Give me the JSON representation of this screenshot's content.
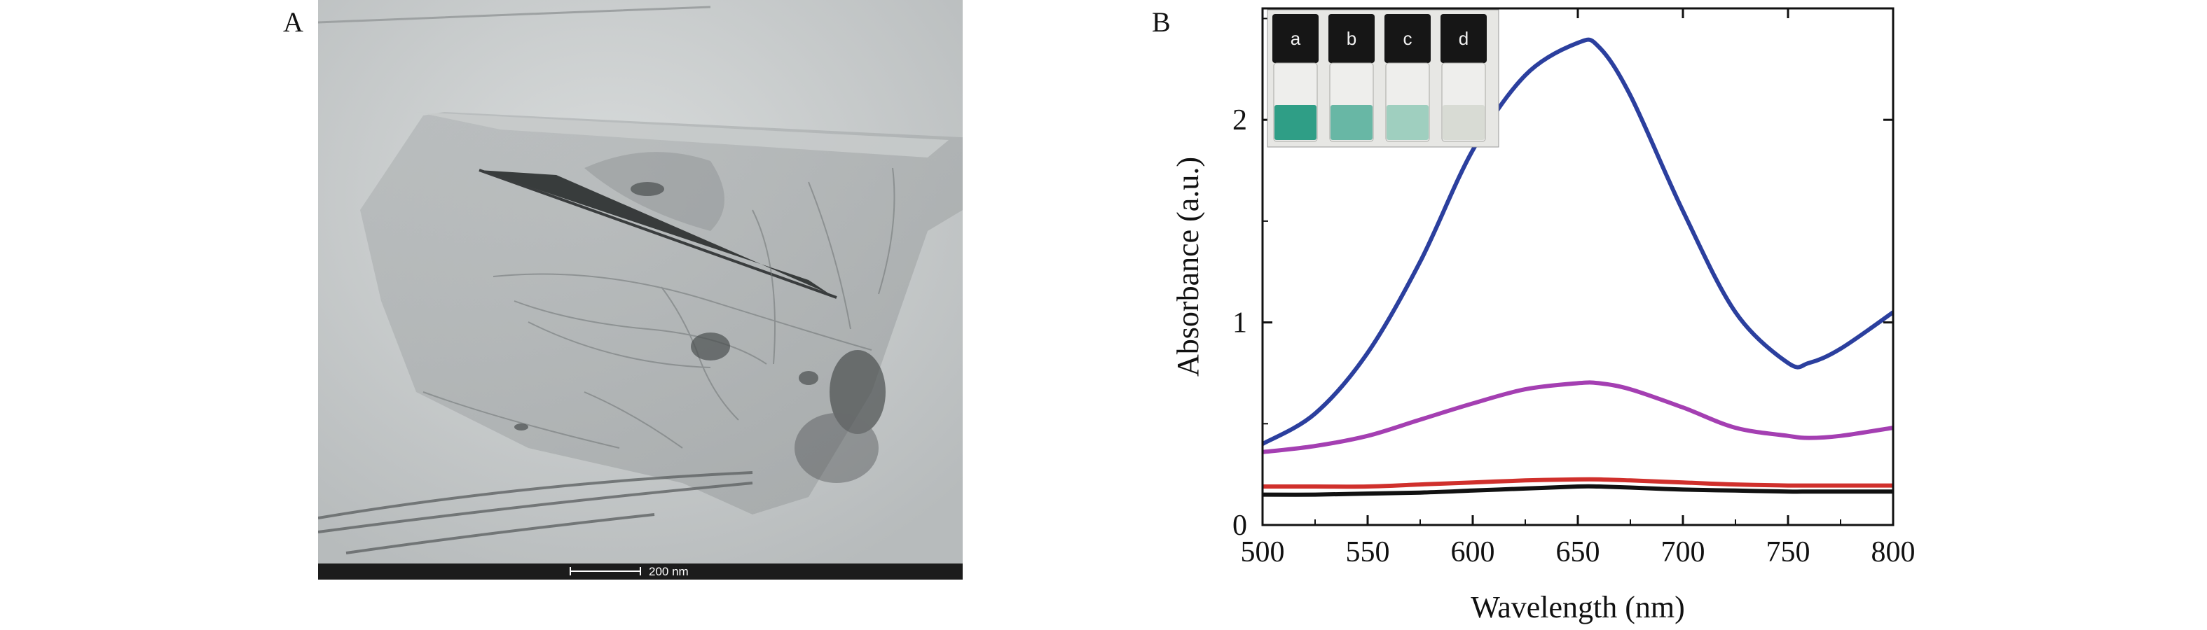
{
  "figure": {
    "panel_a": {
      "label": "A",
      "scale_bar_text": "200 nm"
    },
    "panel_b": {
      "label": "B",
      "inset_vial_labels": [
        "a",
        "b",
        "c",
        "d"
      ],
      "inset_liquid_colors": [
        "#2f9e86",
        "#68b7a5",
        "#9fcfbf",
        "#d8dbd4"
      ]
    }
  },
  "chart_data": {
    "type": "line",
    "xlabel": "Wavelength (nm)",
    "ylabel": "Absorbance (a.u.)",
    "xlim": [
      500,
      800
    ],
    "ylim": [
      0,
      2.55
    ],
    "xticks": [
      500,
      550,
      600,
      650,
      700,
      750,
      800
    ],
    "yticks": [
      0,
      1,
      2
    ],
    "grid": false,
    "legend": "none",
    "x": [
      500,
      525,
      550,
      575,
      600,
      625,
      650,
      660,
      675,
      700,
      725,
      750,
      760,
      775,
      800
    ],
    "series": [
      {
        "color": "#2b3f9e",
        "values": [
          0.4,
          0.55,
          0.85,
          1.3,
          1.85,
          2.22,
          2.38,
          2.36,
          2.12,
          1.55,
          1.05,
          0.8,
          0.8,
          0.87,
          1.05
        ]
      },
      {
        "color": "#a43fb2",
        "values": [
          0.36,
          0.39,
          0.44,
          0.52,
          0.6,
          0.67,
          0.7,
          0.7,
          0.67,
          0.58,
          0.48,
          0.44,
          0.43,
          0.44,
          0.48
        ]
      },
      {
        "color": "#d0302c",
        "values": [
          0.19,
          0.19,
          0.19,
          0.2,
          0.21,
          0.22,
          0.225,
          0.225,
          0.22,
          0.21,
          0.2,
          0.195,
          0.195,
          0.195,
          0.195
        ]
      },
      {
        "color": "#111111",
        "values": [
          0.15,
          0.15,
          0.155,
          0.16,
          0.17,
          0.18,
          0.19,
          0.19,
          0.185,
          0.175,
          0.17,
          0.165,
          0.165,
          0.165,
          0.165
        ]
      }
    ]
  }
}
